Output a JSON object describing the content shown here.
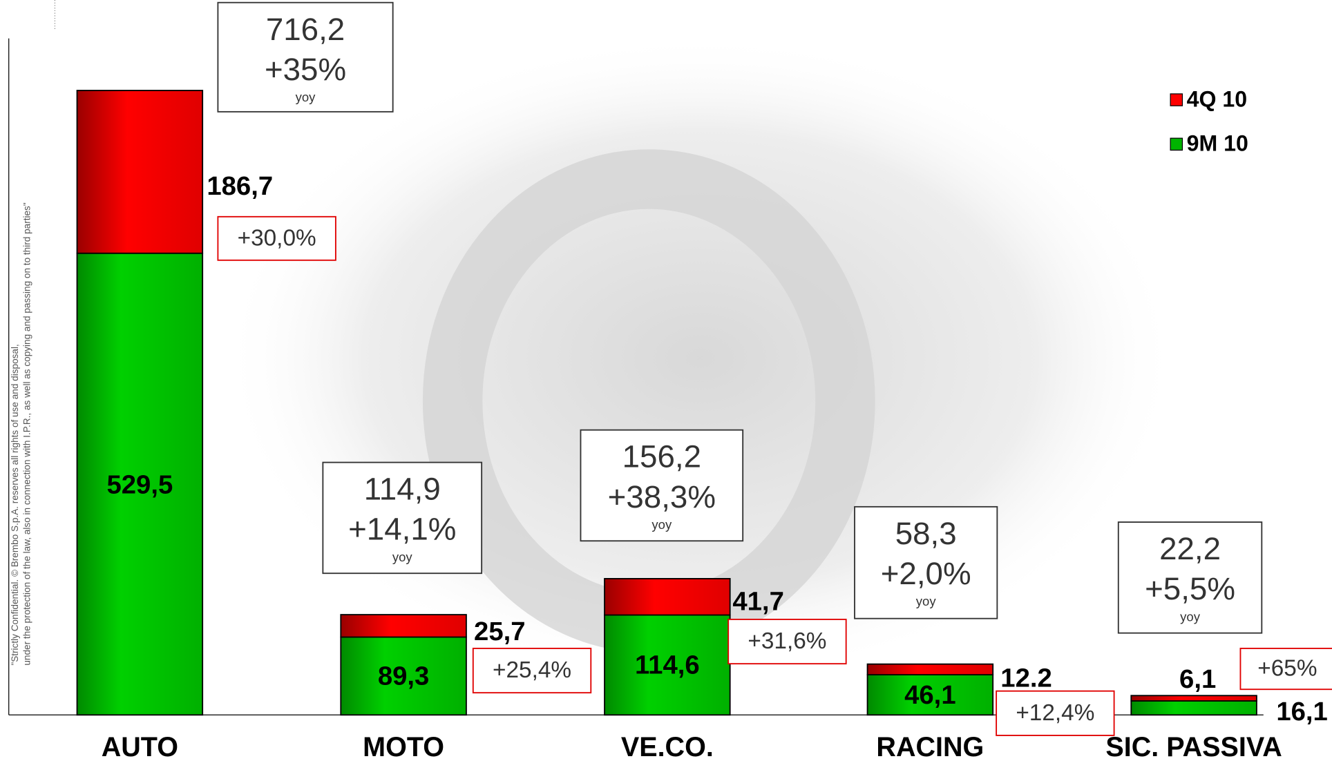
{
  "chart_data": {
    "type": "stacked_bar",
    "categories": [
      "AUTO",
      "MOTO",
      "VE.CO.",
      "RACING",
      "SIC. PASSIVA"
    ],
    "series": [
      {
        "name": "9M 10",
        "color": "#00b400",
        "values": [
          529.5,
          89.3,
          114.6,
          46.1,
          16.1
        ],
        "value_labels": [
          "529,5",
          "89,3",
          "114,6",
          "46,1",
          "16,1"
        ]
      },
      {
        "name": "4Q 10",
        "color": "#ff0000",
        "values": [
          186.7,
          25.7,
          41.7,
          12.2,
          6.1
        ],
        "value_labels": [
          "186,7",
          "25,7",
          "41,7",
          "12.2",
          "6,1"
        ]
      }
    ],
    "growth_labels": [
      "+30,0%",
      "+25,4%",
      "+31,6%",
      "+12,4%",
      "+65%"
    ],
    "totals": [
      {
        "total": "716,2",
        "growth": "+35%",
        "note": "yoy"
      },
      {
        "total": "114,9",
        "growth": "+14,1%",
        "note": "yoy"
      },
      {
        "total": "156,2",
        "growth": "+38,3%",
        "note": "yoy"
      },
      {
        "total": "58,3",
        "growth": "+2,0%",
        "note": "yoy"
      },
      {
        "total": "22,2",
        "growth": "+5,5%",
        "note": "yoy"
      }
    ],
    "disclaimer": [
      "\"Strictly Confidential. © Brembo S.p.A. reserves all rights of use and disposal,",
      "under the protection of the law, also in connection with I.P.R., as well as copying and passing on to third parties\""
    ]
  }
}
